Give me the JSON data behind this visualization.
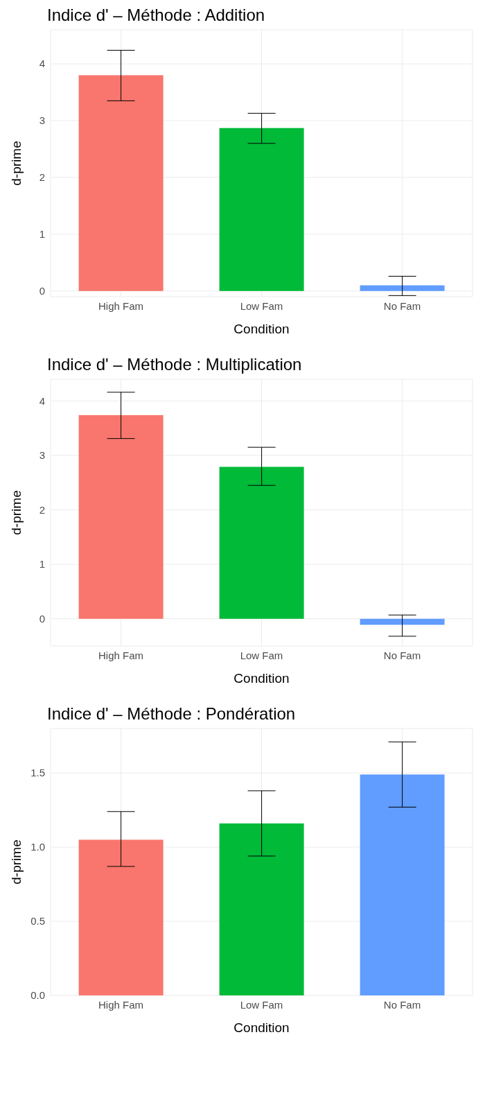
{
  "chart_data": [
    {
      "type": "bar",
      "title": "Indice d' – Méthode : Addition",
      "xlabel": "Condition",
      "ylabel": "d-prime",
      "categories": [
        "High Fam",
        "Low Fam",
        "No Fam"
      ],
      "values": [
        3.8,
        2.87,
        0.1
      ],
      "colors": [
        "#f8766d",
        "#00ba38",
        "#619cff"
      ],
      "errors": [
        [
          3.35,
          4.24
        ],
        [
          2.6,
          3.13
        ],
        [
          -0.08,
          0.26
        ]
      ],
      "ylim": [
        -0.1,
        4.6
      ],
      "yticks": [
        0,
        1,
        2,
        3,
        4
      ],
      "grid": true
    },
    {
      "type": "bar",
      "title": "Indice d' – Méthode : Multiplication",
      "xlabel": "Condition",
      "ylabel": "d-prime",
      "categories": [
        "High Fam",
        "Low Fam",
        "No Fam"
      ],
      "values": [
        3.74,
        2.79,
        -0.11
      ],
      "colors": [
        "#f8766d",
        "#00ba38",
        "#619cff"
      ],
      "errors": [
        [
          3.31,
          4.16
        ],
        [
          2.45,
          3.15
        ],
        [
          -0.32,
          0.07
        ]
      ],
      "ylim": [
        -0.5,
        4.4
      ],
      "yticks": [
        0,
        1,
        2,
        3,
        4
      ],
      "grid": true
    },
    {
      "type": "bar",
      "title": "Indice d' – Méthode : Pondération",
      "xlabel": "Condition",
      "ylabel": "d-prime",
      "categories": [
        "High Fam",
        "Low Fam",
        "No Fam"
      ],
      "values": [
        1.05,
        1.16,
        1.49
      ],
      "colors": [
        "#f8766d",
        "#00ba38",
        "#619cff"
      ],
      "errors": [
        [
          0.87,
          1.24
        ],
        [
          0.94,
          1.38
        ],
        [
          1.27,
          1.71
        ]
      ],
      "ylim": [
        0,
        1.8
      ],
      "yticks": [
        {
          "value": 0,
          "label": "0.0"
        },
        {
          "value": 0.5,
          "label": "0.5"
        },
        {
          "value": 1,
          "label": "1.0"
        },
        {
          "value": 1.5,
          "label": "1.5"
        }
      ],
      "grid": true
    }
  ]
}
